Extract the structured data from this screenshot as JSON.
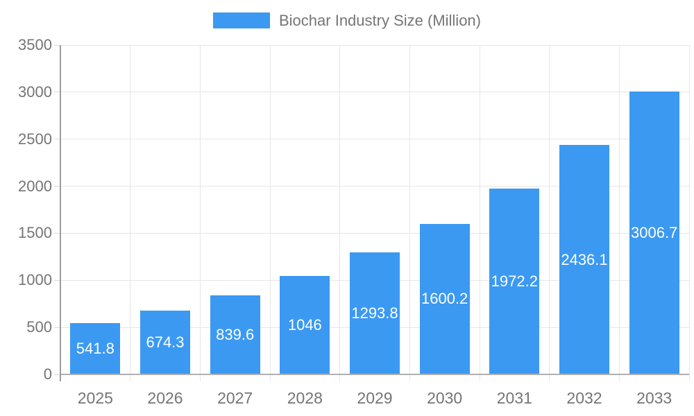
{
  "chart_data": {
    "type": "bar",
    "title": "Biochar Industry Size (Million)",
    "series_name": "Biochar Industry Size (Million)",
    "legend_position": "top",
    "grid": true,
    "categories": [
      "2025",
      "2026",
      "2027",
      "2028",
      "2029",
      "2030",
      "2031",
      "2032",
      "2033"
    ],
    "values": [
      541.8,
      674.3,
      839.6,
      1046,
      1293.8,
      1600.2,
      1972.2,
      2436.1,
      3006.7
    ],
    "value_labels": [
      "541.8",
      "674.3",
      "839.6",
      "1046",
      "1293.8",
      "1600.2",
      "1972.2",
      "2436.1",
      "3006.7"
    ],
    "xlabel": "",
    "ylabel": "",
    "ylim": [
      0,
      3500
    ],
    "ytick_interval": 500,
    "ytick_labels": [
      "0",
      "500",
      "1000",
      "1500",
      "2000",
      "2500",
      "3000",
      "3500"
    ],
    "colors": {
      "bar": "#3b99f2",
      "grid": "#e6e6e6",
      "tick": "#d9d9d9",
      "y_axis": "#9c9c9c",
      "x_axis": "#b0b0b0",
      "axis_text": "#757575",
      "value_text": "#ffffff",
      "background": "#ffffff"
    }
  }
}
